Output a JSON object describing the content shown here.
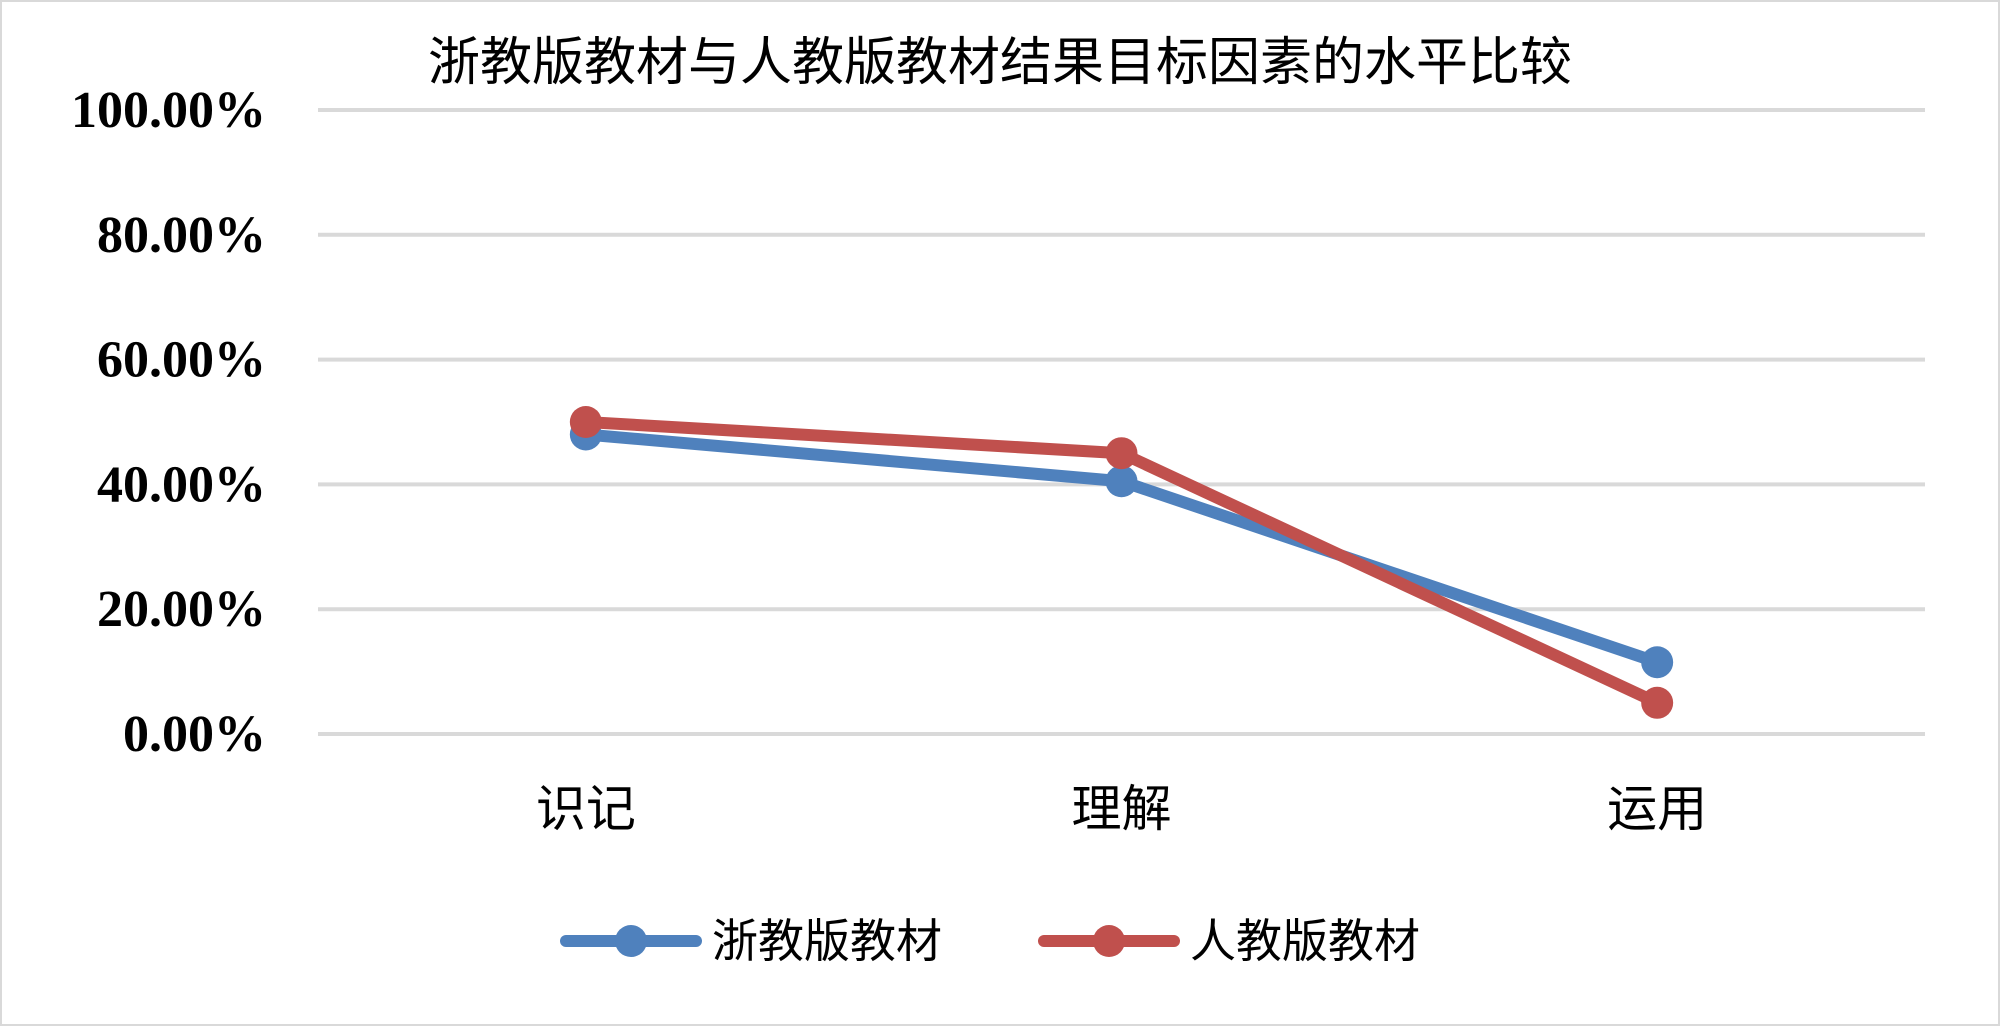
{
  "chart_data": {
    "type": "line",
    "title": "浙教版教材与人教版教材结果目标因素的水平比较",
    "xlabel": "",
    "ylabel": "",
    "categories": [
      "识记",
      "理解",
      "运用"
    ],
    "ylim": [
      0,
      100
    ],
    "y_ticks": [
      "0.00%",
      "20.00%",
      "40.00%",
      "60.00%",
      "80.00%",
      "100.00%"
    ],
    "grid": true,
    "legend_position": "bottom",
    "series": [
      {
        "name": "浙教版教材",
        "color": "#4f81bd",
        "values": [
          48,
          40.5,
          11.5
        ]
      },
      {
        "name": "人教版教材",
        "color": "#c0504d",
        "values": [
          50,
          45,
          5
        ]
      }
    ]
  }
}
